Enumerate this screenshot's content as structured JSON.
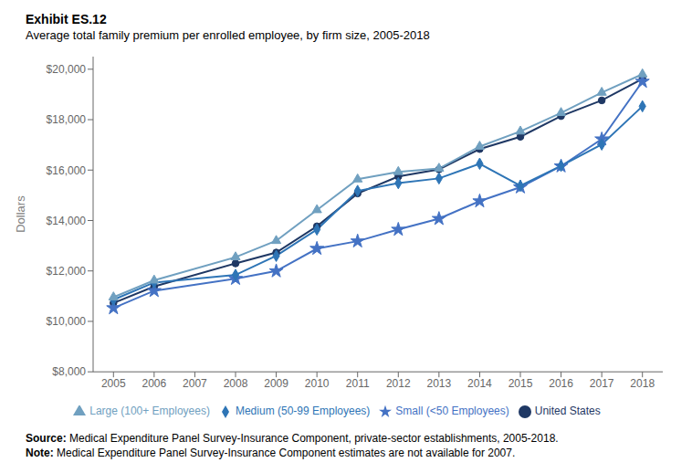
{
  "chart_data": {
    "type": "line",
    "title": "Exhibit ES.12",
    "subtitle": "Average total family premium per enrolled employee, by firm size, 2005-2018",
    "y_label": "Dollars",
    "x": [
      2005,
      2006,
      2007,
      2008,
      2009,
      2010,
      2011,
      2012,
      2013,
      2014,
      2015,
      2016,
      2017,
      2018
    ],
    "xlim": [
      2004.5,
      2018.5
    ],
    "xticks": [
      2005,
      2006,
      2007,
      2008,
      2009,
      2010,
      2011,
      2012,
      2013,
      2014,
      2015,
      2016,
      2017,
      2018
    ],
    "ylim": [
      8000,
      20500
    ],
    "yticks": [
      {
        "value": 8000,
        "label": "$8,000"
      },
      {
        "value": 10000,
        "label": "$10,000"
      },
      {
        "value": 12000,
        "label": "$12,000"
      },
      {
        "value": 14000,
        "label": "$14,000"
      },
      {
        "value": 16000,
        "label": "$16,000"
      },
      {
        "value": 18000,
        "label": "$18,000"
      },
      {
        "value": 20000,
        "label": "$20,000"
      }
    ],
    "grid": false,
    "legend": "bottom",
    "series": [
      {
        "name": "United States",
        "color": "#1f3864",
        "marker": "circle",
        "values": [
          10728,
          11381,
          null,
          12298,
          12730,
          13770,
          15073,
          15745,
          16029,
          16834,
          17322,
          18142,
          18764,
          19616
        ]
      },
      {
        "name": "Small (<50 Employees)",
        "color": "#4472c4",
        "marker": "star",
        "values": [
          10530,
          11214,
          null,
          11695,
          11995,
          12886,
          13180,
          13644,
          14071,
          14769,
          15322,
          16155,
          17227,
          19512
        ]
      },
      {
        "name": "Medium (50-99 Employees)",
        "color": "#2e75b6",
        "marker": "diamond",
        "values": [
          10858,
          11540,
          null,
          11843,
          12598,
          13643,
          15174,
          15482,
          15670,
          16253,
          15377,
          16168,
          17015,
          18531
        ]
      },
      {
        "name": "Large (100+ Employees)",
        "color": "#70a0c0",
        "marker": "triangle",
        "values": [
          10957,
          11627,
          null,
          12546,
          13196,
          14418,
          15636,
          15930,
          16063,
          16935,
          17535,
          18270,
          19074,
          19803
        ]
      }
    ],
    "annotations": [
      "Source: Medical Expenditure Panel Survey-Insurance Component, private-sector establishments, 2005-2018.",
      "Note: Medical Expenditure Panel Survey-Insurance Component estimates are not available for 2007."
    ]
  }
}
